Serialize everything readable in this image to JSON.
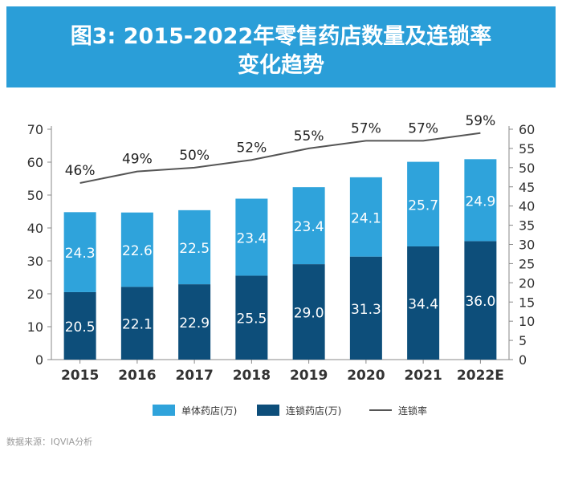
{
  "banner": {
    "title_line1": "图3: 2015-2022年零售药店数量及连锁率",
    "title_line2": "变化趋势"
  },
  "source": "数据来源：IQVIA分析",
  "colors": {
    "banner": "#2a9ed8",
    "single": "#2fa3db",
    "chain": "#0d4e7a",
    "line": "#555555",
    "axis": "#888888"
  },
  "chart_data": {
    "type": "bar",
    "stacked": true,
    "categories": [
      "2015",
      "2016",
      "2017",
      "2018",
      "2019",
      "2020",
      "2021",
      "2022E"
    ],
    "series": [
      {
        "name": "连锁药店(万)",
        "values": [
          20.5,
          22.1,
          22.9,
          25.5,
          29.0,
          31.3,
          34.4,
          36.0
        ],
        "labels": [
          "20.5",
          "22.1",
          "22.9",
          "25.5",
          "29.0",
          "31.3",
          "34.4",
          "36.0"
        ]
      },
      {
        "name": "单体药店(万)",
        "values": [
          24.3,
          22.6,
          22.5,
          23.4,
          23.4,
          24.1,
          25.7,
          24.9
        ],
        "labels": [
          "24.3",
          "22.6",
          "22.5",
          "23.4",
          "23.4",
          "24.1",
          "25.7",
          "24.9"
        ]
      }
    ],
    "line_series": {
      "name": "连锁率",
      "axis": "right",
      "values": [
        46,
        49,
        50,
        52,
        55,
        57,
        57,
        59
      ],
      "labels": [
        "46%",
        "49%",
        "50%",
        "52%",
        "55%",
        "57%",
        "57%",
        "59%"
      ]
    },
    "ylim": [
      0,
      70
    ],
    "yticks": [
      "0",
      "10",
      "20",
      "30",
      "40",
      "50",
      "60",
      "70"
    ],
    "y2lim": [
      0,
      60
    ],
    "y2ticks": [
      "0",
      "5",
      "10",
      "15",
      "20",
      "25",
      "30",
      "35",
      "40",
      "45",
      "50",
      "55",
      "60"
    ],
    "legend": {
      "position": "bottom",
      "items": [
        {
          "label": "单体药店(万)",
          "kind": "box",
          "color_key": "single"
        },
        {
          "label": "连锁药店(万)",
          "kind": "box",
          "color_key": "chain"
        },
        {
          "label": "连锁率",
          "kind": "line",
          "color_key": "line"
        }
      ]
    }
  }
}
